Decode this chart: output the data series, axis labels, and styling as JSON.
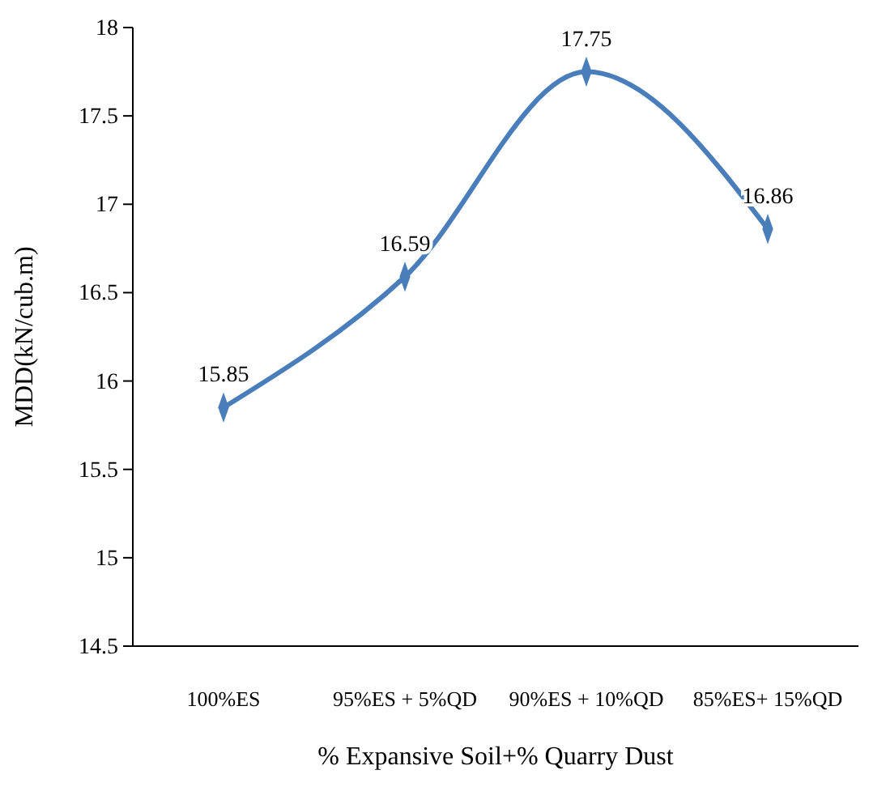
{
  "chart_data": {
    "type": "line",
    "xlabel": "% Expansive Soil+% Quarry Dust",
    "ylabel": "MDD(kN/cub.m)",
    "categories": [
      "100%ES",
      "95%ES + 5%QD",
      "90%ES + 10%QD",
      "85%ES+ 15%QD"
    ],
    "series": [
      {
        "color": "#4a7ebb",
        "values": [
          15.85,
          16.59,
          17.75,
          16.86
        ]
      }
    ],
    "ylim": [
      14.5,
      18
    ],
    "yticks": [
      14.5,
      15,
      15.5,
      16,
      16.5,
      17,
      17.5,
      18
    ],
    "marker": "diamond",
    "line_style": "solid",
    "data_labels": true,
    "grid": false
  }
}
